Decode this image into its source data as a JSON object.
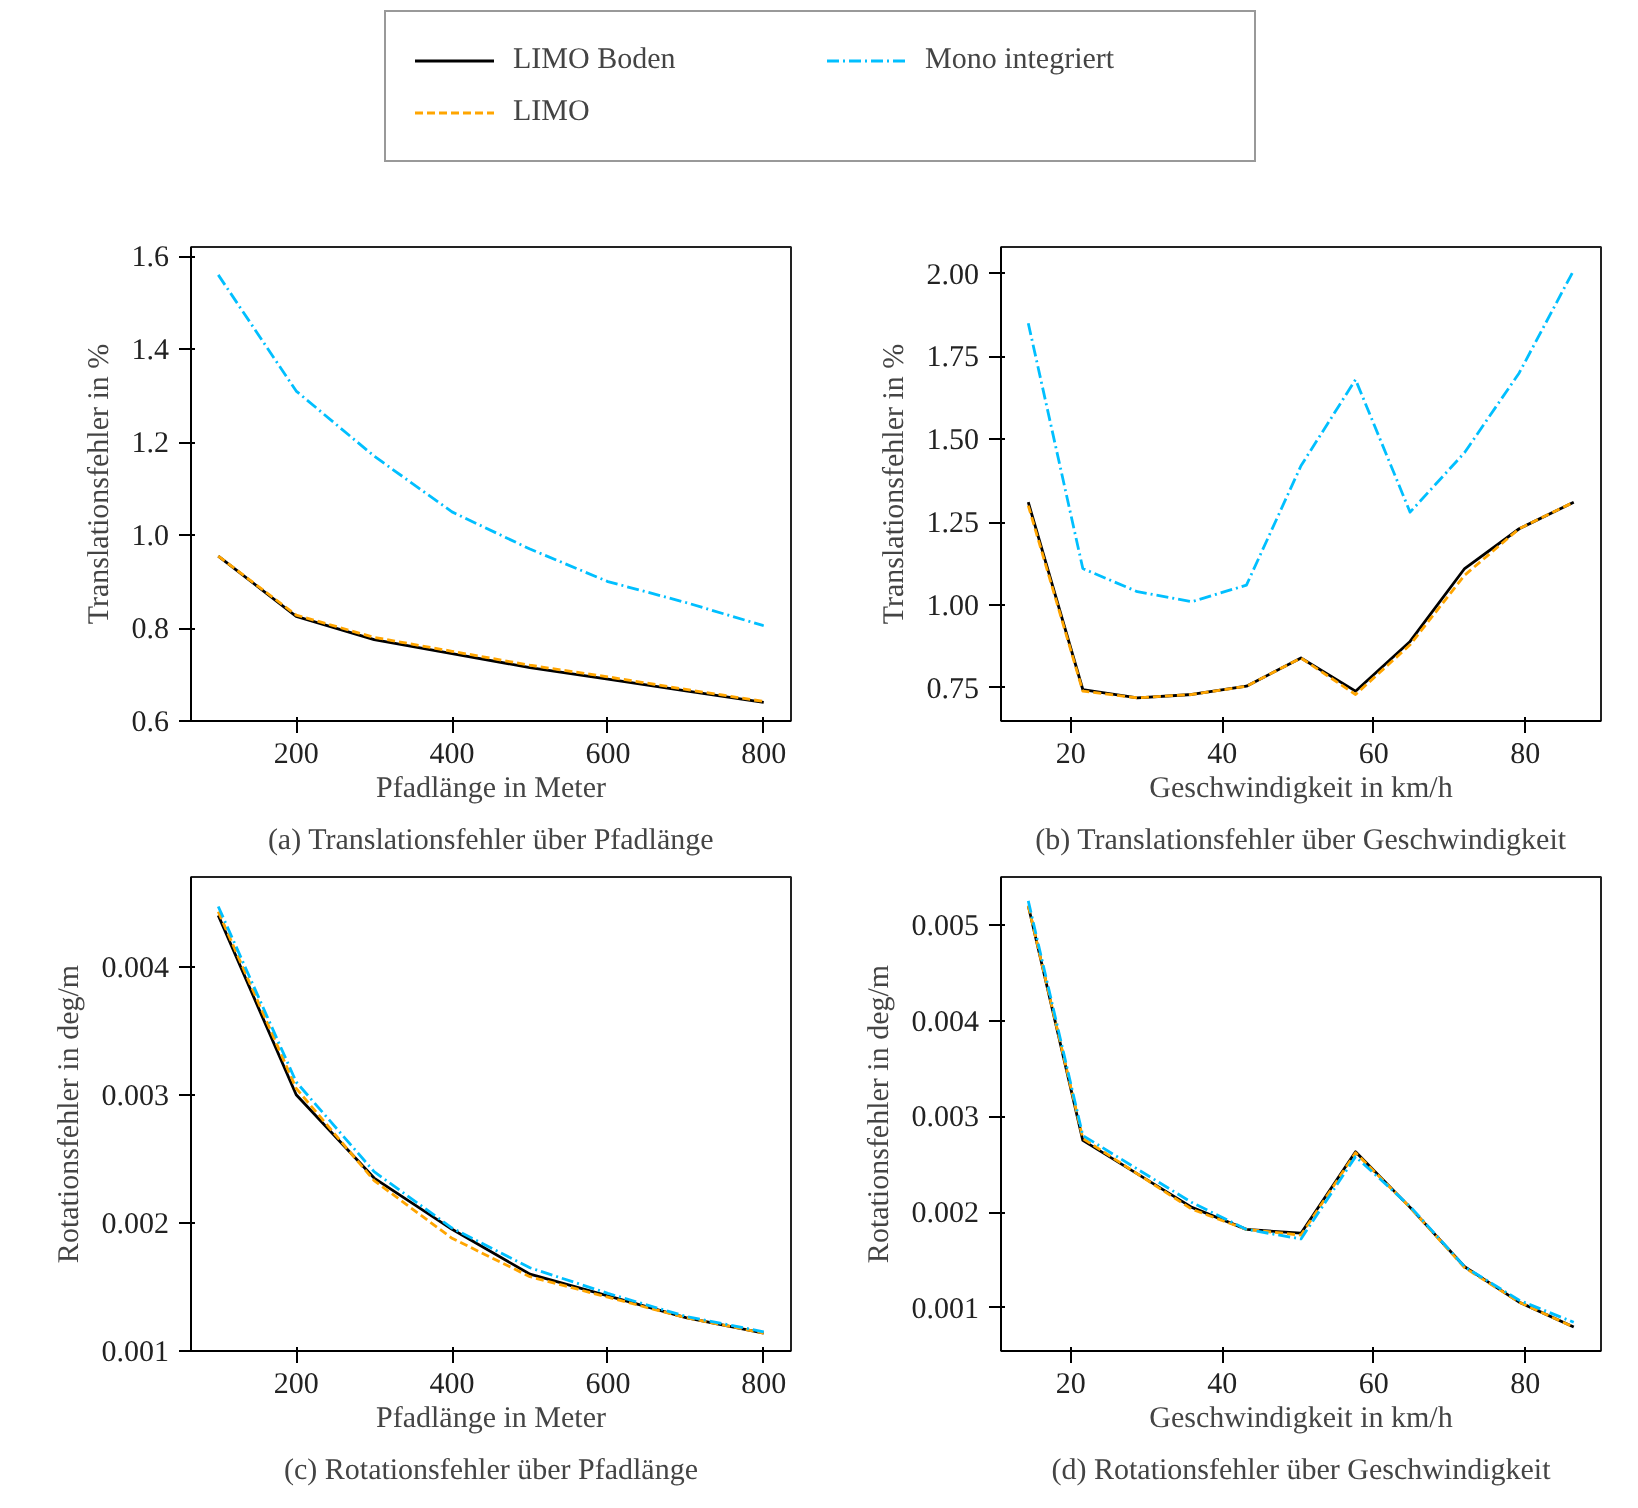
{
  "chart_data": [
    {
      "type": "line",
      "xlabel": "Pfadlänge in Meter",
      "ylabel": "Translationsfehler in %",
      "annotations": [
        "(a) Translationsfehler über Pfadlänge"
      ],
      "legend": "top",
      "x": [
        100,
        200,
        300,
        400,
        500,
        600,
        700,
        800
      ],
      "xlim": [
        65,
        835
      ],
      "ylim": [
        0.6,
        1.62
      ],
      "xticks": [
        200,
        400,
        600,
        800
      ],
      "yticks": [
        0.6,
        0.8,
        {
          "value": 1.0,
          "label": "1.0"
        },
        1.2,
        1.4,
        1.6
      ],
      "series": [
        {
          "name": "LIMO Boden",
          "color": "#000000",
          "line_style": "solid",
          "values": [
            0.955,
            0.825,
            0.775,
            0.745,
            0.715,
            0.69,
            0.665,
            0.64
          ]
        },
        {
          "name": "LIMO",
          "color": "#ffa500",
          "line_style": "dashed",
          "values": [
            0.955,
            0.828,
            0.78,
            0.75,
            0.72,
            0.695,
            0.668,
            0.642
          ]
        },
        {
          "name": "Mono integriert",
          "color": "#00bfff",
          "line_style": "dashdot",
          "values": [
            1.56,
            1.31,
            1.17,
            1.05,
            0.97,
            0.9,
            0.855,
            0.805
          ]
        }
      ]
    },
    {
      "type": "line",
      "xlabel": "Geschwindigkeit in km/h",
      "ylabel": "Translationsfehler in %",
      "annotations": [
        "(b) Translationsfehler über Geschwindigkeit"
      ],
      "x": [
        14.4,
        21.6,
        28.8,
        36,
        43.2,
        50.4,
        57.6,
        64.8,
        72,
        79.2,
        86.4
      ],
      "xlim": [
        10.8,
        90
      ],
      "ylim": [
        0.65,
        2.08
      ],
      "xticks": [
        20,
        40,
        60,
        80
      ],
      "yticks": [
        0.75,
        {
          "value": 1.0,
          "label": "1.00"
        },
        1.25,
        {
          "value": 1.5,
          "label": "1.50"
        },
        1.75,
        {
          "value": 2.0,
          "label": "2.00"
        }
      ],
      "series": [
        {
          "color": "#000000",
          "line_style": "solid",
          "values": [
            1.31,
            0.745,
            0.72,
            0.73,
            0.755,
            0.84,
            0.74,
            0.89,
            1.11,
            1.23,
            1.31
          ]
        },
        {
          "color": "#ffa500",
          "line_style": "dashed",
          "values": [
            1.3,
            0.74,
            0.72,
            0.73,
            0.755,
            0.84,
            0.73,
            0.88,
            1.09,
            1.23,
            1.31
          ]
        },
        {
          "color": "#00bfff",
          "line_style": "dashdot",
          "values": [
            1.85,
            1.11,
            1.04,
            1.01,
            1.06,
            1.42,
            1.68,
            1.28,
            1.46,
            1.7,
            2.01
          ]
        }
      ]
    },
    {
      "type": "line",
      "xlabel": "Pfadlänge in Meter",
      "ylabel": "Rotationsfehler in deg/m",
      "annotations": [
        "(c) Rotationsfehler über Pfadlänge"
      ],
      "x": [
        100,
        200,
        300,
        400,
        500,
        600,
        700,
        800
      ],
      "xlim": [
        65,
        835
      ],
      "ylim": [
        0.001,
        0.0047
      ],
      "xticks": [
        200,
        400,
        600,
        800
      ],
      "yticks": [
        0.001,
        0.002,
        0.003,
        0.004
      ],
      "series": [
        {
          "color": "#000000",
          "line_style": "solid",
          "values": [
            0.0044,
            0.003,
            0.00235,
            0.00195,
            0.0016,
            0.00143,
            0.00126,
            0.00114
          ]
        },
        {
          "color": "#ffa500",
          "line_style": "dashed",
          "values": [
            0.00443,
            0.00305,
            0.00233,
            0.00188,
            0.00158,
            0.00142,
            0.00126,
            0.00114
          ]
        },
        {
          "color": "#00bfff",
          "line_style": "dashdot",
          "values": [
            0.00447,
            0.0031,
            0.0024,
            0.00196,
            0.00165,
            0.00145,
            0.00127,
            0.00115
          ]
        }
      ]
    },
    {
      "type": "line",
      "xlabel": "Geschwindigkeit in km/h",
      "ylabel": "Rotationsfehler in deg/m",
      "annotations": [
        "(d) Rotationsfehler über Geschwindigkeit"
      ],
      "x": [
        14.4,
        21.6,
        28.8,
        36,
        43.2,
        50.4,
        57.6,
        64.8,
        72,
        79.2,
        86.4
      ],
      "xlim": [
        10.8,
        90
      ],
      "ylim": [
        0.00055,
        0.0055
      ],
      "xticks": [
        20,
        40,
        60,
        80
      ],
      "yticks": [
        0.001,
        0.002,
        0.003,
        0.004,
        0.005
      ],
      "series": [
        {
          "color": "#000000",
          "line_style": "solid",
          "values": [
            0.0052,
            0.00275,
            0.0024,
            0.00205,
            0.00182,
            0.00178,
            0.00263,
            0.00205,
            0.00143,
            0.00106,
            0.0008
          ]
        },
        {
          "color": "#ffa500",
          "line_style": "dashed",
          "values": [
            0.0052,
            0.00277,
            0.0024,
            0.00203,
            0.00182,
            0.00176,
            0.00262,
            0.00205,
            0.00142,
            0.00106,
            0.0008
          ]
        },
        {
          "color": "#00bfff",
          "line_style": "dashdot",
          "values": [
            0.00525,
            0.0028,
            0.00245,
            0.0021,
            0.00182,
            0.00172,
            0.00258,
            0.00206,
            0.00143,
            0.00108,
            0.00085
          ]
        }
      ]
    }
  ]
}
